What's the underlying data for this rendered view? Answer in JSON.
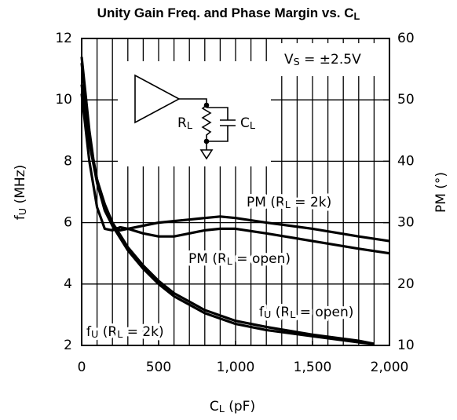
{
  "chart_data": {
    "type": "line",
    "title": [
      "Unity Gain Freq. and Phase Margin vs. C",
      "L"
    ],
    "x_label": [
      "C",
      "L",
      " (pF)"
    ],
    "y_label": [
      "f",
      "U",
      " (MHz)"
    ],
    "y2_label": [
      "PM (°)"
    ],
    "xlim": [
      0,
      2000
    ],
    "xticks": [
      0,
      500,
      {
        "value": 1000,
        "label": "1,000"
      },
      {
        "value": 1500,
        "label": "1,500"
      },
      {
        "value": 2000,
        "label": "2,000"
      }
    ],
    "x_grid_step": 100,
    "ylim": [
      2,
      12
    ],
    "yticks": [
      2,
      4,
      6,
      8,
      10,
      12
    ],
    "y2lim": [
      10,
      60
    ],
    "y2ticks": [
      10,
      20,
      30,
      40,
      50,
      60
    ],
    "grid": true,
    "annotations": [
      {
        "parts": [
          "V",
          "S",
          " = ±2.5V"
        ]
      },
      {
        "parts": [
          "PM (R",
          "L",
          " = 2k)"
        ]
      },
      {
        "parts": [
          "PM (R",
          "L",
          " = open)"
        ]
      },
      {
        "parts": [
          "f",
          "U",
          " (R",
          "L",
          " = open)"
        ]
      },
      {
        "parts": [
          "f",
          "U",
          " (R",
          "L",
          " = 2k)"
        ]
      }
    ],
    "circuit": {
      "resistor": [
        "R",
        "L"
      ],
      "capacitor": [
        "C",
        "L"
      ]
    },
    "series": [
      {
        "name": "fU (RL = 2k)",
        "color": "#000000",
        "x": [
          0,
          25,
          50,
          75,
          100,
          150,
          200,
          300,
          400,
          500,
          600,
          800,
          1000,
          1200,
          1500,
          1800,
          1900
        ],
        "values": [
          11.4,
          10.2,
          9.0,
          8.1,
          7.4,
          6.5,
          5.9,
          5.1,
          4.5,
          4.0,
          3.6,
          3.05,
          2.7,
          2.5,
          2.3,
          2.1,
          2.05
        ]
      },
      {
        "name": "fU (RL = open)",
        "color": "#000000",
        "x": [
          0,
          25,
          50,
          75,
          100,
          150,
          200,
          300,
          400,
          500,
          600,
          800,
          1000,
          1200,
          1500,
          1800,
          1900
        ],
        "values": [
          11.2,
          10.0,
          8.9,
          8.0,
          7.4,
          6.6,
          6.0,
          5.2,
          4.6,
          4.1,
          3.7,
          3.15,
          2.8,
          2.6,
          2.35,
          2.15,
          2.05
        ]
      },
      {
        "name": "PM (RL = 2k)",
        "color": "#000000",
        "axis": "y2",
        "x": [
          0,
          50,
          100,
          150,
          200,
          250,
          300,
          400,
          500,
          600,
          700,
          800,
          900,
          1000,
          1200,
          1500,
          1800,
          2000
        ],
        "values": [
          52.5,
          43,
          36.5,
          32,
          29.5,
          28.75,
          29,
          29.5,
          30,
          30.25,
          30.5,
          30.75,
          31,
          30.75,
          30,
          29,
          27.75,
          27
        ]
      },
      {
        "name": "PM (RL = open)",
        "color": "#000000",
        "axis": "y2",
        "x": [
          0,
          50,
          100,
          150,
          200,
          250,
          300,
          400,
          500,
          600,
          700,
          800,
          900,
          1000,
          1200,
          1500,
          1800,
          2000
        ],
        "values": [
          51,
          40,
          32.5,
          29,
          28.75,
          29.25,
          29,
          28.25,
          27.75,
          27.75,
          28.25,
          28.75,
          29,
          29,
          28.25,
          27,
          25.75,
          25
        ]
      }
    ]
  }
}
